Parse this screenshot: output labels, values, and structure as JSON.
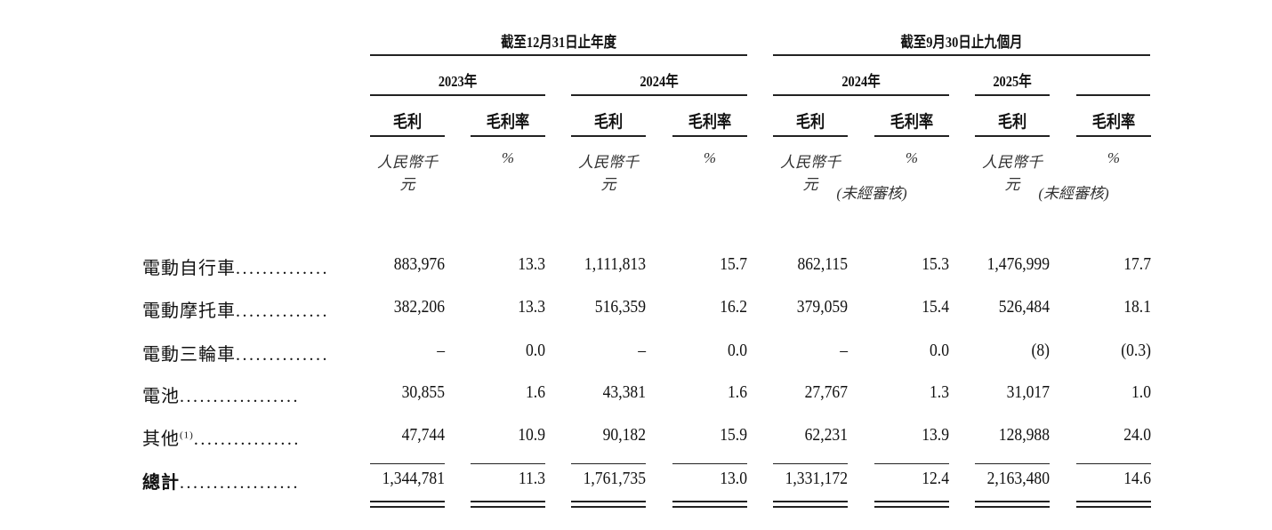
{
  "header": {
    "group_year": "截至12月31日止年度",
    "group_nine": "截至9月30日止九個月",
    "years": [
      "2023年",
      "2024年",
      "2024年",
      "2025年"
    ],
    "col_labels": [
      "毛利",
      "毛利率",
      "毛利",
      "毛利率",
      "毛利",
      "毛利率",
      "毛利",
      "毛利率"
    ],
    "units": [
      "人民幣千元",
      "%",
      "人民幣千元",
      "%",
      "人民幣千元",
      "%",
      "人民幣千元",
      "%"
    ],
    "unaudited": "(未經審核)"
  },
  "rows": [
    {
      "label": "電動自行車",
      "dots": "..............",
      "values": [
        "883,976",
        "13.3",
        "1,111,813",
        "15.7",
        "862,115",
        "15.3",
        "1,476,999",
        "17.7"
      ]
    },
    {
      "label": "電動摩托車",
      "dots": "..............",
      "values": [
        "382,206",
        "13.3",
        "516,359",
        "16.2",
        "379,059",
        "15.4",
        "526,484",
        "18.1"
      ]
    },
    {
      "label": "電動三輪車",
      "dots": "..............",
      "values": [
        "–",
        "0.0",
        "–",
        "0.0",
        "–",
        "0.0",
        "(8)",
        "(0.3)"
      ]
    },
    {
      "label": "電池",
      "dots": "..................",
      "values": [
        "30,855",
        "1.6",
        "43,381",
        "1.6",
        "27,767",
        "1.3",
        "31,017",
        "1.0"
      ]
    },
    {
      "label": "其他",
      "note": "(1)",
      "dots": "................",
      "values": [
        "47,744",
        "10.9",
        "90,182",
        "15.9",
        "62,231",
        "13.9",
        "128,988",
        "24.0"
      ]
    },
    {
      "label": "總計",
      "dots": "..................",
      "bold": true,
      "values": [
        "1,344,781",
        "11.3",
        "1,761,735",
        "13.0",
        "1,331,172",
        "12.4",
        "2,163,480",
        "14.6"
      ]
    }
  ]
}
